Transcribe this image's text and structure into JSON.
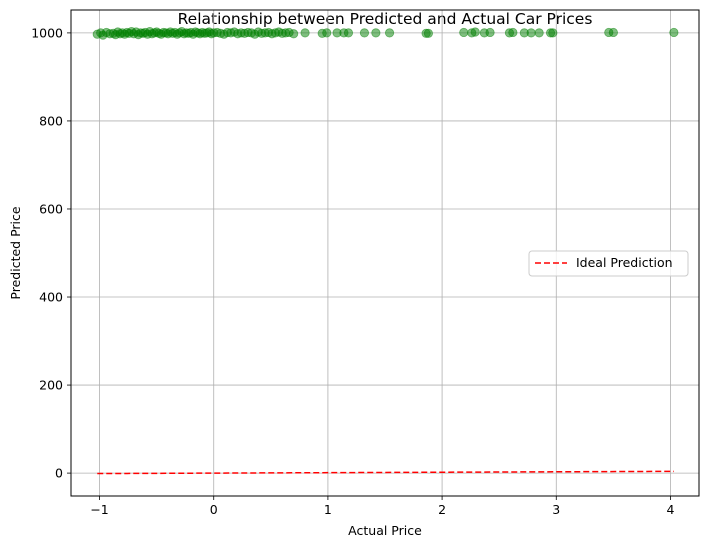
{
  "chart_data": {
    "type": "scatter",
    "title": "Relationship between Predicted and Actual Car Prices",
    "xlabel": "Actual Price",
    "ylabel": "Predicted Price",
    "xlim": [
      -1.25,
      4.25
    ],
    "ylim": [
      -52,
      1052
    ],
    "xticks": [
      -1,
      0,
      1,
      2,
      3,
      4
    ],
    "yticks": [
      0,
      200,
      400,
      600,
      800,
      1000
    ],
    "grid": true,
    "legend_position": "center-right",
    "colors": {
      "points": "#008000",
      "ideal_line": "#ff0000",
      "grid": "#b0b0b0"
    },
    "series": [
      {
        "kind": "scatter",
        "x": [
          -1.02,
          -0.99,
          -0.97,
          -0.94,
          -0.91,
          -0.88,
          -0.86,
          -0.84,
          -0.82,
          -0.8,
          -0.78,
          -0.76,
          -0.74,
          -0.72,
          -0.7,
          -0.68,
          -0.66,
          -0.64,
          -0.62,
          -0.6,
          -0.58,
          -0.56,
          -0.54,
          -0.52,
          -0.5,
          -0.48,
          -0.46,
          -0.44,
          -0.42,
          -0.4,
          -0.38,
          -0.36,
          -0.34,
          -0.32,
          -0.3,
          -0.28,
          -0.26,
          -0.24,
          -0.22,
          -0.2,
          -0.18,
          -0.16,
          -0.14,
          -0.12,
          -0.1,
          -0.08,
          -0.06,
          -0.04,
          -0.02,
          0.0,
          0.03,
          0.06,
          0.09,
          0.12,
          0.15,
          0.18,
          0.21,
          0.24,
          0.27,
          0.3,
          0.33,
          0.36,
          0.39,
          0.42,
          0.45,
          0.48,
          0.51,
          0.54,
          0.57,
          0.6,
          0.63,
          0.66,
          0.7,
          0.8,
          0.95,
          0.99,
          1.08,
          1.14,
          1.18,
          1.32,
          1.42,
          1.54,
          1.86,
          1.88,
          2.19,
          2.26,
          2.29,
          2.37,
          2.42,
          2.59,
          2.62,
          2.72,
          2.78,
          2.85,
          2.95,
          2.97,
          3.46,
          3.5,
          4.03
        ],
        "y": [
          997,
          1000,
          995,
          1001,
          998,
          999,
          996,
          1002,
          998,
          1000,
          997,
          1001,
          999,
          1003,
          998,
          1002,
          996,
          1000,
          999,
          1001,
          997,
          1003,
          998,
          1000,
          1002,
          999,
          997,
          1001,
          1000,
          998,
          1002,
          999,
          1001,
          997,
          1000,
          1003,
          998,
          1000,
          999,
          1001,
          997,
          1002,
          1000,
          998,
          1001,
          999,
          1000,
          1002,
          998,
          1000,
          1001,
          999,
          997,
          1001,
          1000,
          1002,
          998,
          1000,
          999,
          1001,
          1000,
          997,
          1002,
          999,
          1000,
          1001,
          998,
          1000,
          1002,
          999,
          1000,
          1001,
          998,
          1000,
          999,
          1000,
          1000,
          1000,
          1000,
          1000,
          1000,
          1000,
          999,
          999,
          1001,
          1000,
          1002,
          1000,
          1001,
          1000,
          1001,
          1000,
          1000,
          1000,
          1000,
          1000,
          1001,
          1001,
          1001
        ]
      },
      {
        "kind": "line",
        "name": "Ideal Prediction",
        "style": "dashed",
        "x": [
          -1.02,
          4.03
        ],
        "y": [
          -1.02,
          4.03
        ]
      }
    ]
  }
}
